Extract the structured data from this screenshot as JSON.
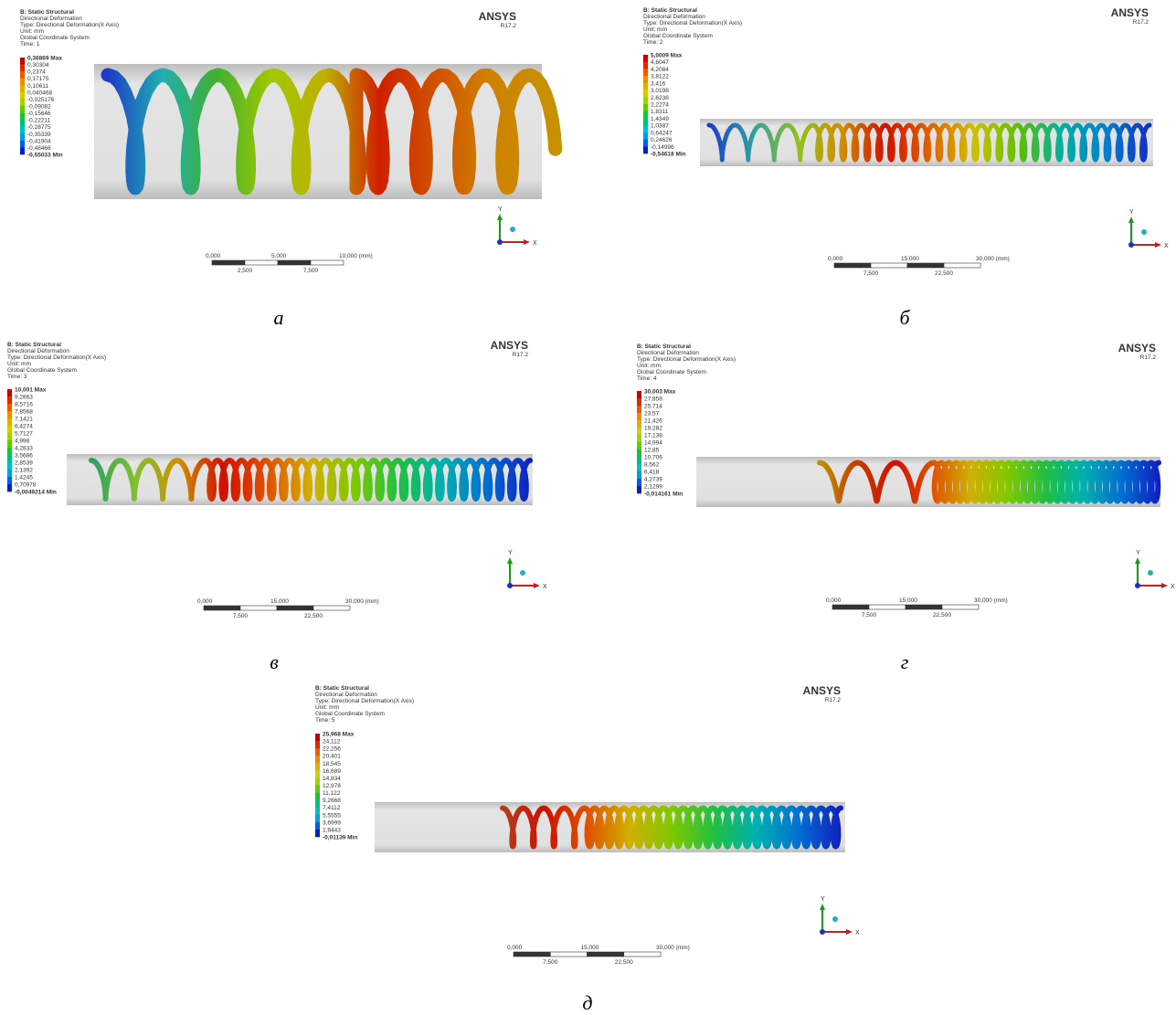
{
  "panels": [
    {
      "header": [
        "B: Static Structural",
        "Directional Deformation",
        "Type: Directional Deformation(X Axis)",
        "Unit: mm",
        "Global Coordinate System",
        "Time: 1"
      ],
      "logo": "ANSYS",
      "version": "R17.2",
      "legend": [
        "0,36869 Max",
        "0,30304",
        "0,2374",
        "0,17175",
        "0,10611",
        "0,040468",
        "-0,025176",
        "-0,09082",
        "-0,15646",
        "-0,22211",
        "-0,28775",
        "-0,35339",
        "-0,41904",
        "-0,48468",
        "-0,55033 Min"
      ],
      "scale_top": [
        "0,000",
        "5,000",
        "10,000 (mm)"
      ],
      "scale_bottom": [
        "2,500",
        "7,500"
      ],
      "axes": [
        "Y",
        "X"
      ],
      "caption": "а"
    },
    {
      "header": [
        "B: Static Structural",
        "Directional Deformation",
        "Type: Directional Deformation(X Axis)",
        "Unit: mm",
        "Global Coordinate System",
        "Time: 2"
      ],
      "logo": "ANSYS",
      "version": "R17.2",
      "legend": [
        "5,0009 Max",
        "4,6047",
        "4,2084",
        "3,8122",
        "3,416",
        "3,0198",
        "2,6236",
        "2,2274",
        "1,8311",
        "1,4349",
        "1,0387",
        "0,64247",
        "0,24626",
        "-0,14996",
        "-0,54618 Min"
      ],
      "scale_top": [
        "0,000",
        "15,000",
        "30,000 (mm)"
      ],
      "scale_bottom": [
        "7,500",
        "22,500"
      ],
      "axes": [
        "Y",
        "X"
      ],
      "caption": "б"
    },
    {
      "header": [
        "B: Static Structural",
        "Directional Deformation",
        "Type: Directional Deformation(X Axis)",
        "Unit: mm",
        "Global Coordinate System",
        "Time: 3"
      ],
      "logo": "ANSYS",
      "version": "R17.2",
      "legend": [
        "10,001 Max",
        "9,2863",
        "8,5716",
        "7,8568",
        "7,1421",
        "6,4274",
        "5,7127",
        "4,998",
        "4,2833",
        "3,5686",
        "2,8539",
        "2,1392",
        "1,4245",
        "0,70978",
        "-0,0049214 Min"
      ],
      "scale_top": [
        "0,000",
        "15,000",
        "30,000 (mm)"
      ],
      "scale_bottom": [
        "7,500",
        "22,500"
      ],
      "axes": [
        "Y",
        "X"
      ],
      "caption": "в"
    },
    {
      "header": [
        "B: Static Structural",
        "Directional Deformation",
        "Type: Directional Deformation(X Axis)",
        "Unit: mm",
        "Global Coordinate System",
        "Time: 4"
      ],
      "logo": "ANSYS",
      "version": "R17.2",
      "legend": [
        "30,003 Max",
        "27,858",
        "25,714",
        "23,57",
        "21,426",
        "19,282",
        "17,138",
        "14,994",
        "12,85",
        "10,706",
        "8,562",
        "6,418",
        "4,2739",
        "2,1299",
        "-0,014161 Min"
      ],
      "scale_top": [
        "0,000",
        "15,000",
        "30,000 (mm)"
      ],
      "scale_bottom": [
        "7,500",
        "22,500"
      ],
      "axes": [
        "Y",
        "X"
      ],
      "caption": "г"
    },
    {
      "header": [
        "B: Static Structural",
        "Directional Deformation",
        "Type: Directional Deformation(X Axis)",
        "Unit: mm",
        "Global Coordinate System",
        "Time: 5"
      ],
      "logo": "ANSYS",
      "version": "R17.2",
      "legend": [
        "25,968 Max",
        "24,112",
        "22,256",
        "20,401",
        "18,545",
        "16,689",
        "14,834",
        "12,978",
        "11,122",
        "9,2668",
        "7,4112",
        "5,5555",
        "3,6999",
        "1,8443",
        "-0,01139 Min"
      ],
      "scale_top": [
        "0,000",
        "15,000",
        "30,000 (mm)"
      ],
      "scale_bottom": [
        "7,500",
        "22,500"
      ],
      "axes": [
        "Y",
        "X"
      ],
      "caption": "д"
    }
  ]
}
